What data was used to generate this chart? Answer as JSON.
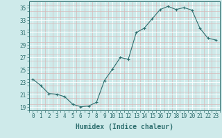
{
  "x": [
    0,
    1,
    2,
    3,
    4,
    5,
    6,
    7,
    8,
    9,
    10,
    11,
    12,
    13,
    14,
    15,
    16,
    17,
    18,
    19,
    20,
    21,
    22,
    23
  ],
  "y": [
    23.5,
    22.5,
    21.2,
    21.1,
    20.7,
    19.5,
    19.1,
    19.2,
    19.8,
    23.3,
    25.1,
    27.0,
    26.7,
    31.0,
    31.7,
    33.2,
    34.7,
    35.2,
    34.7,
    35.0,
    34.6,
    31.7,
    30.1,
    29.8
  ],
  "line_color": "#2d6e6e",
  "marker": "+",
  "marker_size": 3,
  "bg_color": "#ceeaea",
  "grid_major_color": "#ffffff",
  "grid_minor_color": "#d8b8b8",
  "xlabel": "Humidex (Indice chaleur)",
  "xlim": [
    -0.5,
    23.5
  ],
  "ylim": [
    18.5,
    36.0
  ],
  "yticks": [
    19,
    21,
    23,
    25,
    27,
    29,
    31,
    33,
    35
  ],
  "xticks": [
    0,
    1,
    2,
    3,
    4,
    5,
    6,
    7,
    8,
    9,
    10,
    11,
    12,
    13,
    14,
    15,
    16,
    17,
    18,
    19,
    20,
    21,
    22,
    23
  ],
  "tick_color": "#2d6e6e",
  "label_fontsize": 7,
  "tick_fontsize": 5.5
}
